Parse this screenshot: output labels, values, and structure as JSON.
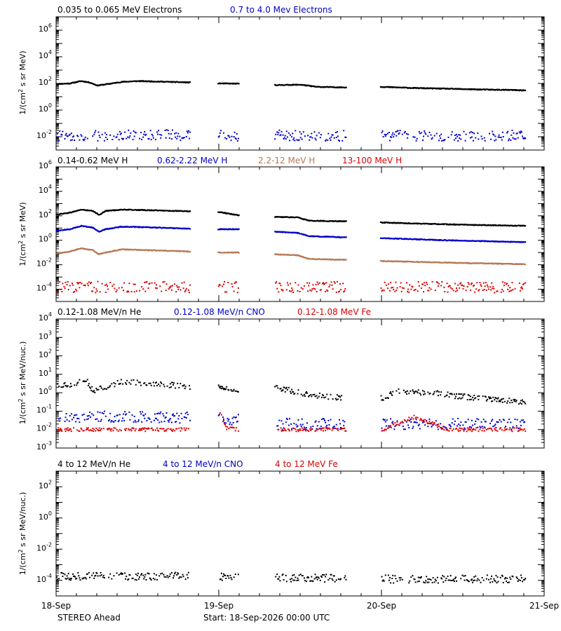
{
  "footer": {
    "left_label": "STEREO Ahead",
    "start_label": "Start: 18-Sep-2026 00:00 UTC"
  },
  "x_axis": {
    "type": "date",
    "range": [
      "2026-09-18",
      "2026-09-21"
    ],
    "tick_labels": [
      "18-Sep",
      "19-Sep",
      "20-Sep",
      "21-Sep"
    ]
  },
  "panels": [
    {
      "legend": [
        {
          "label": "0.035 to 0.065 MeV Electrons",
          "color": "#000000"
        },
        {
          "label": "0.7 to 4.0 Mev Electrons",
          "color": "#0000cc"
        }
      ],
      "ylabel": {
        "base": "1/(cm",
        "exp": "2",
        "rest": " s sr MeV)"
      }
    },
    {
      "legend": [
        {
          "label": "0.14-0.62 MeV H",
          "color": "#000000"
        },
        {
          "label": "0.62-2.22 MeV H",
          "color": "#0000cc"
        },
        {
          "label": "2.2-12 MeV H",
          "color": "#b87856"
        },
        {
          "label": "13-100 MeV H",
          "color": "#dd0000"
        }
      ],
      "ylabel": {
        "base": "1/(cm",
        "exp": "2",
        "rest": " s sr MeV)"
      }
    },
    {
      "legend": [
        {
          "label": "0.12-1.08 MeV/n He",
          "color": "#000000"
        },
        {
          "label": "0.12-1.08 MeV/n CNO",
          "color": "#0000cc"
        },
        {
          "label": "0.12-1.08 MeV Fe",
          "color": "#dd0000"
        }
      ],
      "ylabel": {
        "base": "1/(cm",
        "exp": "2",
        "rest": " s sr MeV/nuc.)"
      }
    },
    {
      "legend": [
        {
          "label": "4 to 12 MeV/n He",
          "color": "#000000"
        },
        {
          "label": "4 to 12 MeV/n CNO",
          "color": "#0000cc"
        },
        {
          "label": "4 to 12 MeV Fe",
          "color": "#dd0000"
        }
      ],
      "ylabel": {
        "base": "1/(cm",
        "exp": "2",
        "rest": " s sr MeV/nuc.)"
      }
    }
  ],
  "chart_data": [
    {
      "type": "scatter",
      "x_unit": "days since 18-Sep-2026 00:00 UTC",
      "yscale": "log",
      "ylim": [
        0.001,
        10000000
      ],
      "ytick_exponents": [
        -2,
        0,
        2,
        4,
        6
      ],
      "data_gaps": [
        [
          0.82,
          0.99
        ],
        [
          1.12,
          1.34
        ],
        [
          1.78,
          1.99
        ]
      ],
      "series": [
        {
          "name": "0.035 to 0.065 MeV Electrons",
          "color": "#000000",
          "x": [
            0.0,
            0.08,
            0.15,
            0.2,
            0.25,
            0.3,
            0.4,
            0.5,
            0.6,
            0.7,
            0.8,
            1.0,
            1.12,
            1.35,
            1.5,
            1.6,
            1.78,
            2.0,
            2.2,
            2.4,
            2.6,
            2.8,
            2.88
          ],
          "y": [
            90,
            100,
            150,
            120,
            70,
            85,
            130,
            150,
            140,
            130,
            120,
            100,
            95,
            75,
            80,
            55,
            50,
            55,
            45,
            40,
            35,
            32,
            30
          ]
        },
        {
          "name": "0.7 to 4.0 Mev Electrons",
          "color": "#0000cc",
          "noise": 0.8,
          "x": [
            0.0,
            0.2,
            0.4,
            0.6,
            0.82,
            1.0,
            1.12,
            1.35,
            1.6,
            1.78,
            2.0,
            2.4,
            2.88
          ],
          "y": [
            0.012,
            0.012,
            0.013,
            0.013,
            0.013,
            0.012,
            0.012,
            0.013,
            0.012,
            0.012,
            0.012,
            0.012,
            0.012
          ]
        }
      ]
    },
    {
      "type": "scatter",
      "x_unit": "days since 18-Sep-2026 00:00 UTC",
      "yscale": "log",
      "ylim": [
        1e-05,
        1000000
      ],
      "ytick_exponents": [
        -4,
        -2,
        0,
        2,
        4,
        6
      ],
      "data_gaps": [
        [
          0.82,
          0.99
        ],
        [
          1.12,
          1.34
        ],
        [
          1.78,
          1.99
        ]
      ],
      "series": [
        {
          "name": "0.14-0.62 MeV H",
          "color": "#000000",
          "x": [
            0.0,
            0.08,
            0.15,
            0.22,
            0.26,
            0.3,
            0.4,
            0.6,
            0.82,
            1.0,
            1.12,
            1.35,
            1.48,
            1.55,
            1.78,
            2.0,
            2.4,
            2.88
          ],
          "y": [
            130,
            180,
            320,
            250,
            120,
            250,
            320,
            280,
            230,
            200,
            110,
            80,
            75,
            40,
            35,
            28,
            20,
            15
          ]
        },
        {
          "name": "0.62-2.22 MeV H",
          "color": "#0000cc",
          "x": [
            0.0,
            0.08,
            0.15,
            0.22,
            0.26,
            0.3,
            0.4,
            0.6,
            0.82,
            1.0,
            1.12,
            1.35,
            1.48,
            1.55,
            1.78,
            2.0,
            2.4,
            2.88
          ],
          "y": [
            6,
            8,
            15,
            11,
            5,
            8,
            13,
            11,
            9,
            8,
            8,
            5,
            4,
            2.2,
            1.7,
            1.5,
            1.0,
            0.7
          ]
        },
        {
          "name": "2.2-12 MeV H",
          "color": "#b87856",
          "x": [
            0.0,
            0.08,
            0.15,
            0.22,
            0.26,
            0.3,
            0.4,
            0.6,
            0.82,
            1.0,
            1.12,
            1.35,
            1.48,
            1.55,
            1.78,
            2.0,
            2.4,
            2.88
          ],
          "y": [
            0.08,
            0.12,
            0.22,
            0.16,
            0.07,
            0.1,
            0.18,
            0.15,
            0.12,
            0.1,
            0.1,
            0.07,
            0.06,
            0.03,
            0.025,
            0.02,
            0.015,
            0.011
          ]
        },
        {
          "name": "13-100 MeV H",
          "color": "#dd0000",
          "noise": 0.9,
          "x": [
            0.0,
            0.4,
            0.82,
            1.0,
            1.12,
            1.35,
            1.78,
            2.0,
            2.88
          ],
          "y": [
            0.00015,
            0.00015,
            0.00015,
            0.00015,
            0.00015,
            0.00015,
            0.00015,
            0.00015,
            0.00015
          ]
        }
      ]
    },
    {
      "type": "scatter",
      "x_unit": "days since 18-Sep-2026 00:00 UTC",
      "yscale": "log",
      "ylim": [
        0.001,
        10000
      ],
      "ytick_exponents": [
        -3,
        -2,
        -1,
        0,
        1,
        2,
        3,
        4
      ],
      "data_gaps": [
        [
          0.82,
          0.99
        ],
        [
          1.12,
          1.34
        ],
        [
          1.78,
          1.99
        ]
      ],
      "series": [
        {
          "name": "0.12-1.08 MeV/n He",
          "color": "#000000",
          "noise": 0.3,
          "x": [
            0.0,
            0.1,
            0.18,
            0.22,
            0.3,
            0.4,
            0.6,
            0.82,
            1.0,
            1.12,
            1.35,
            1.45,
            1.55,
            1.65,
            1.78,
            2.0,
            2.1,
            2.3,
            2.5,
            2.7,
            2.88
          ],
          "y": [
            2.5,
            3,
            5,
            1.3,
            2,
            4,
            3,
            2.2,
            2,
            1.2,
            2,
            1.2,
            0.8,
            0.6,
            0.5,
            0.5,
            1.2,
            1,
            0.6,
            0.4,
            0.3
          ]
        },
        {
          "name": "0.12-1.08 MeV/n CNO",
          "color": "#0000cc",
          "noise": 0.6,
          "x": [
            0.0,
            0.2,
            0.4,
            0.6,
            0.82,
            1.0,
            1.04,
            1.12,
            1.35,
            1.78,
            2.0,
            2.4,
            2.88
          ],
          "y": [
            0.05,
            0.05,
            0.05,
            0.045,
            0.045,
            0.1,
            0.02,
            0.05,
            0.02,
            0.02,
            0.02,
            0.02,
            0.02
          ]
        },
        {
          "name": "0.12-1.08 MeV Fe",
          "color": "#dd0000",
          "noise": 0.2,
          "x": [
            0.0,
            0.4,
            0.82,
            1.0,
            1.04,
            1.12,
            1.35,
            1.78,
            2.0,
            2.2,
            2.4,
            2.88
          ],
          "y": [
            0.01,
            0.01,
            0.01,
            0.1,
            0.012,
            0.01,
            0.01,
            0.01,
            0.01,
            0.05,
            0.01,
            0.01
          ]
        }
      ]
    },
    {
      "type": "scatter",
      "x_unit": "days since 18-Sep-2026 00:00 UTC",
      "yscale": "log",
      "ylim": [
        1e-05,
        1000
      ],
      "ytick_exponents": [
        -4,
        -2,
        0,
        2
      ],
      "data_gaps": [
        [
          0.82,
          0.99
        ],
        [
          1.12,
          1.34
        ],
        [
          1.78,
          1.99
        ]
      ],
      "series": [
        {
          "name": "4 to 12 MeV/n He",
          "color": "#000000",
          "noise": 0.5,
          "x": [
            0.0,
            0.4,
            0.82,
            1.0,
            1.12,
            1.35,
            1.78,
            2.0,
            2.4,
            2.88
          ],
          "y": [
            0.00018,
            0.00018,
            0.00018,
            0.00016,
            0.00016,
            0.00014,
            0.00014,
            0.00012,
            0.00012,
            0.00012
          ]
        },
        {
          "name": "4 to 12 MeV/n CNO",
          "color": "#0000cc",
          "noise": 0.0,
          "x": [
            0.25,
            0.3
          ],
          "y": [
            1e-05,
            1e-05
          ]
        },
        {
          "name": "4 to 12 MeV Fe",
          "color": "#dd0000",
          "noise": 0.0,
          "x": [],
          "y": []
        }
      ]
    }
  ]
}
